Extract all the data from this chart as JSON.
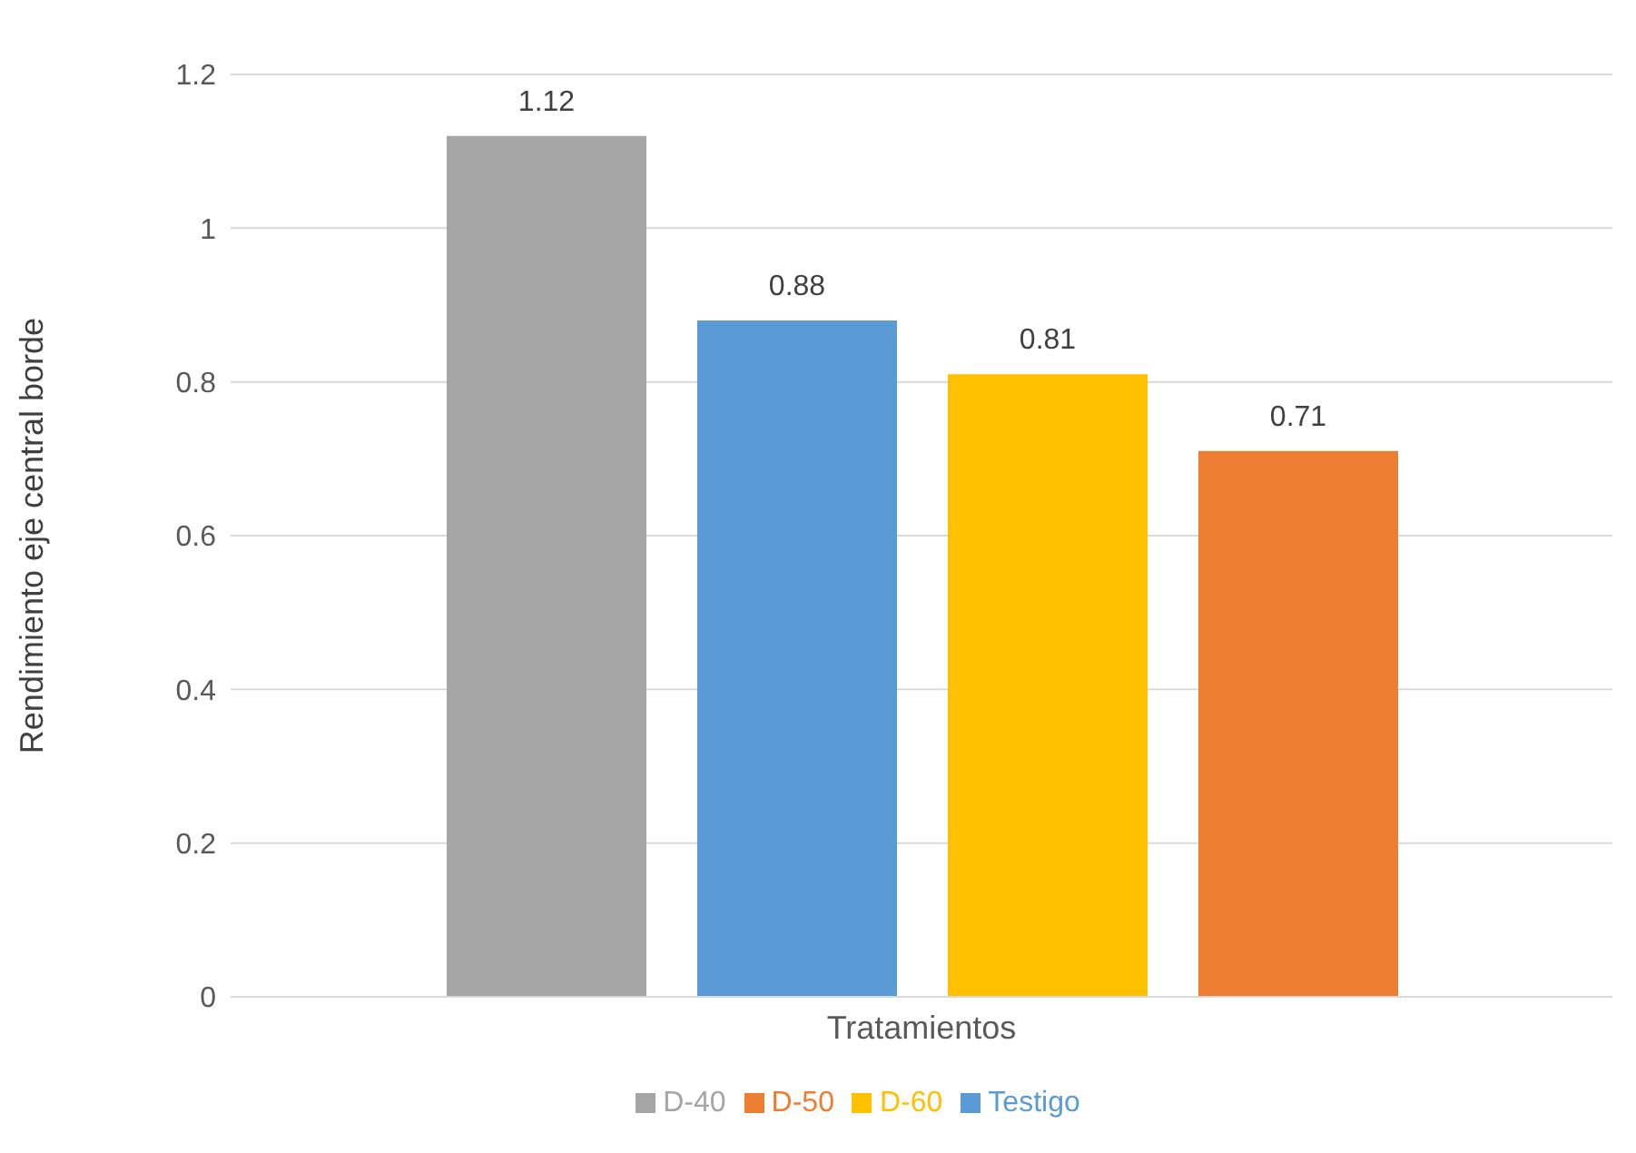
{
  "chart_data": {
    "type": "bar",
    "xlabel": "Tratamientos",
    "ylabel": "Rendimiento eje central borde",
    "categories": [
      null
    ],
    "series": [
      {
        "name": "D-40",
        "color": "#a5a5a5",
        "values": [
          1.12
        ]
      },
      {
        "name": "Testigo",
        "color": "#5b9bd5",
        "values": [
          0.88
        ]
      },
      {
        "name": "D-60",
        "color": "#ffc000",
        "values": [
          0.81
        ]
      },
      {
        "name": "D-50",
        "color": "#ed7d31",
        "values": [
          0.71
        ]
      }
    ],
    "ylim": [
      0,
      1.2
    ],
    "yticks": [
      0,
      0.2,
      0.4,
      0.6,
      0.8,
      1,
      1.2
    ],
    "grid": "y",
    "legend": "bottom",
    "data_labels": true
  }
}
